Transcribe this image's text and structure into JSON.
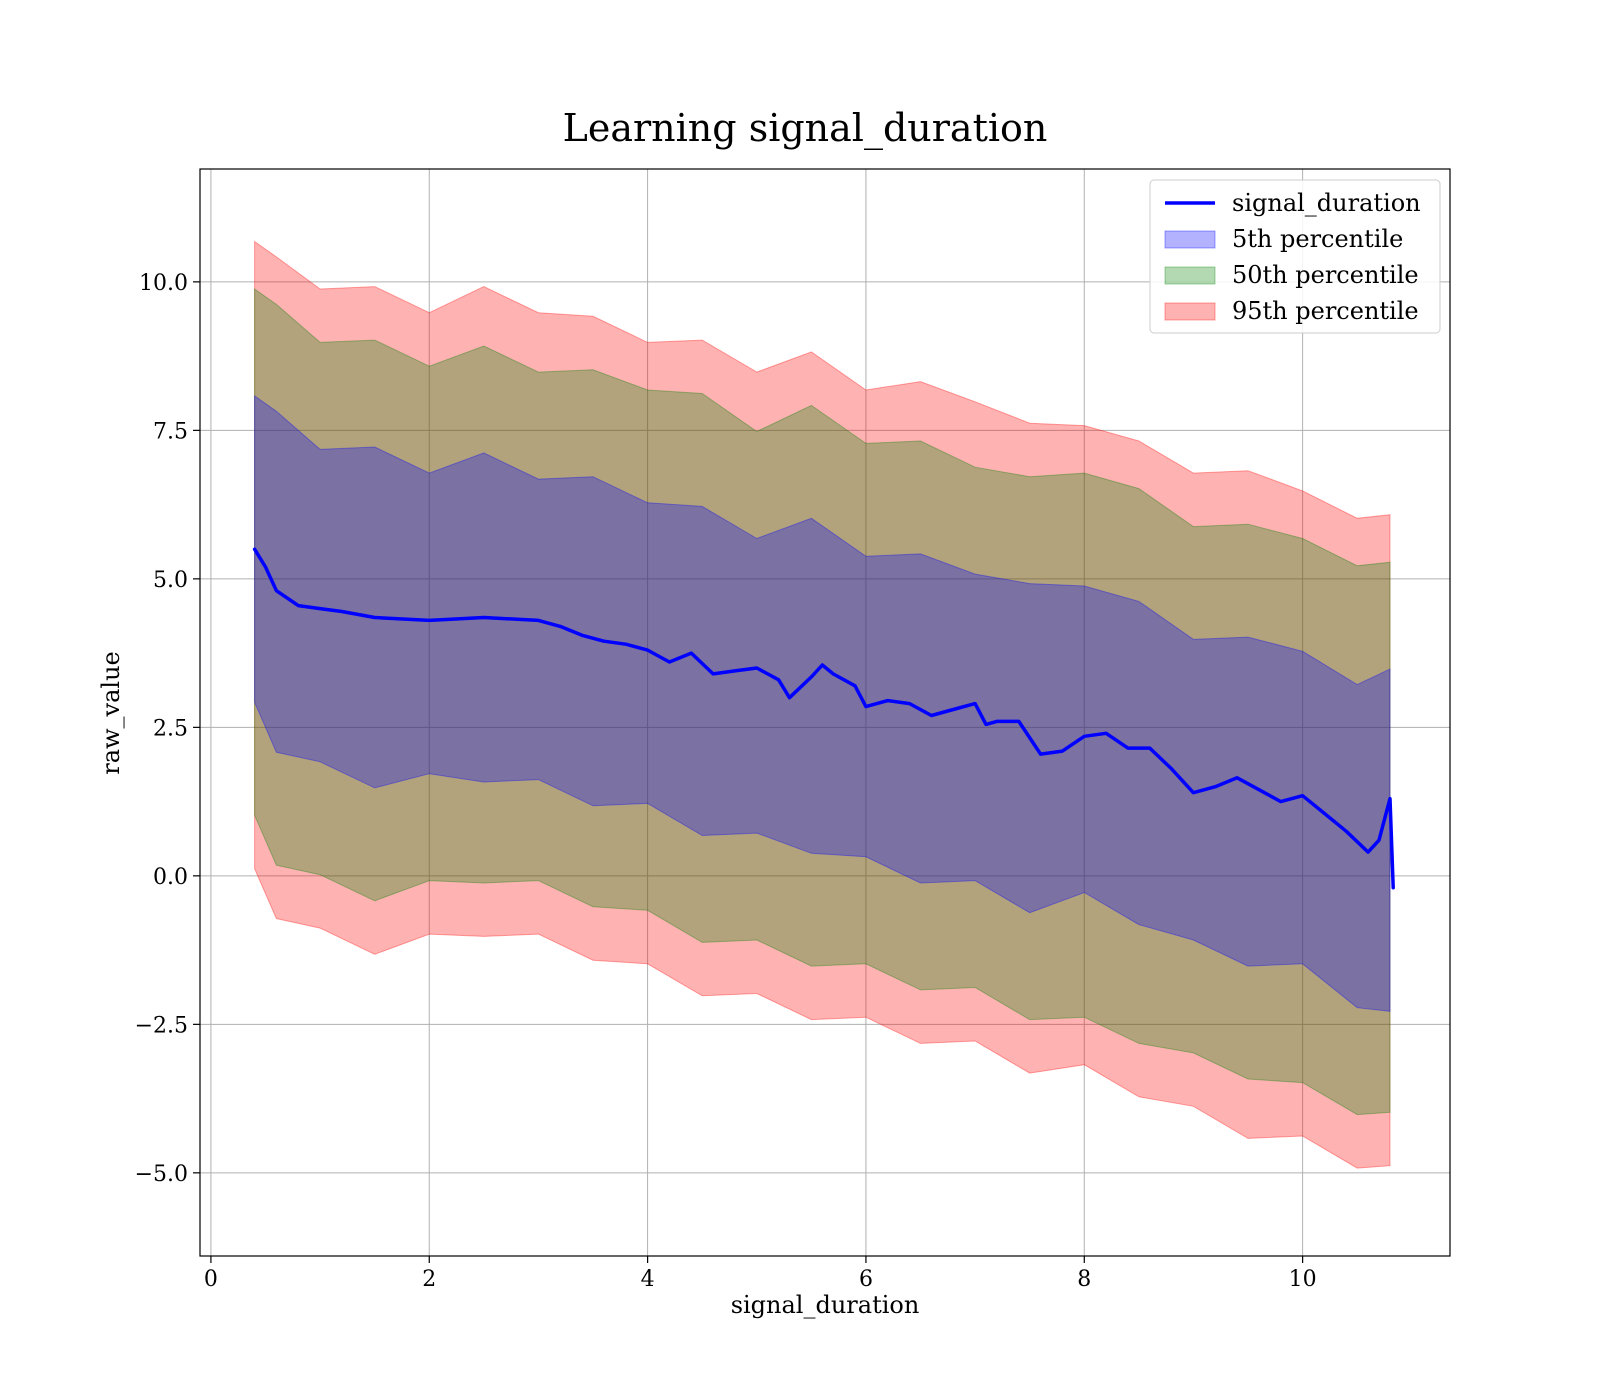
{
  "chart_data": {
    "type": "line",
    "title": "Learning signal_duration",
    "xlabel": "signal_duration",
    "ylabel": "raw_value",
    "xlim": [
      -0.1,
      11.35
    ],
    "ylim": [
      -6.4,
      11.9
    ],
    "xticks": [
      0,
      2,
      4,
      6,
      8,
      10
    ],
    "xtick_labels": [
      "0",
      "2",
      "4",
      "6",
      "8",
      "10"
    ],
    "yticks": [
      -5.0,
      -2.5,
      0.0,
      2.5,
      5.0,
      7.5,
      10.0
    ],
    "ytick_labels": [
      "−5.0",
      "−2.5",
      "0.0",
      "2.5",
      "5.0",
      "7.5",
      "10.0"
    ],
    "grid": true,
    "legend_position": "top-right",
    "colors": {
      "line": "#0000ff",
      "band_5th": "#0000ff",
      "band_50th": "#008000",
      "band_95th": "#ff0000"
    },
    "line": {
      "name": "signal_duration",
      "x": [
        0.4,
        0.5,
        0.6,
        0.8,
        1.0,
        1.2,
        1.5,
        2.0,
        2.5,
        3.0,
        3.2,
        3.4,
        3.6,
        3.8,
        4.0,
        4.2,
        4.4,
        4.6,
        4.8,
        5.0,
        5.2,
        5.3,
        5.5,
        5.6,
        5.7,
        5.9,
        6.0,
        6.2,
        6.4,
        6.6,
        6.8,
        7.0,
        7.1,
        7.2,
        7.4,
        7.6,
        7.8,
        8.0,
        8.2,
        8.4,
        8.6,
        8.8,
        9.0,
        9.2,
        9.4,
        9.6,
        9.8,
        10.0,
        10.2,
        10.4,
        10.6,
        10.7,
        10.8,
        10.83
      ],
      "y": [
        5.5,
        5.2,
        4.8,
        4.55,
        4.5,
        4.45,
        4.35,
        4.3,
        4.35,
        4.3,
        4.2,
        4.05,
        3.95,
        3.9,
        3.8,
        3.6,
        3.75,
        3.4,
        3.45,
        3.5,
        3.3,
        3.0,
        3.35,
        3.55,
        3.4,
        3.2,
        2.85,
        2.95,
        2.9,
        2.7,
        2.8,
        2.9,
        2.55,
        2.6,
        2.6,
        2.05,
        2.1,
        2.35,
        2.4,
        2.15,
        2.15,
        1.8,
        1.4,
        1.5,
        1.65,
        1.45,
        1.25,
        1.35,
        1.05,
        0.75,
        0.4,
        0.6,
        1.3,
        -0.2
      ]
    },
    "bands": [
      {
        "name": "95th percentile",
        "x": [
          0.4,
          0.6,
          1.0,
          1.5,
          2.0,
          2.5,
          3.0,
          3.5,
          4.0,
          4.5,
          5.0,
          5.5,
          6.0,
          6.5,
          7.0,
          7.5,
          8.0,
          8.5,
          9.0,
          9.5,
          10.0,
          10.5,
          10.8
        ],
        "upper": [
          10.8,
          10.3,
          10.0,
          9.8,
          9.6,
          9.8,
          9.6,
          9.3,
          9.1,
          8.9,
          8.6,
          8.7,
          8.3,
          8.2,
          8.1,
          7.5,
          7.7,
          7.2,
          6.9,
          6.7,
          6.6,
          5.9,
          6.2
        ],
        "lower": [
          0.0,
          -0.6,
          -1.0,
          -1.2,
          -1.1,
          -0.9,
          -1.1,
          -1.3,
          -1.6,
          -1.9,
          -2.1,
          -2.3,
          -2.5,
          -2.7,
          -2.9,
          -3.2,
          -3.3,
          -3.6,
          -4.0,
          -4.3,
          -4.5,
          -4.8,
          -5.0
        ]
      },
      {
        "name": "50th percentile",
        "x": [
          0.4,
          0.6,
          1.0,
          1.5,
          2.0,
          2.5,
          3.0,
          3.5,
          4.0,
          4.5,
          5.0,
          5.5,
          6.0,
          6.5,
          7.0,
          7.5,
          8.0,
          8.5,
          9.0,
          9.5,
          10.0,
          10.5,
          10.8
        ],
        "upper": [
          10.0,
          9.5,
          9.1,
          8.9,
          8.7,
          8.8,
          8.6,
          8.4,
          8.3,
          8.0,
          7.6,
          7.8,
          7.4,
          7.2,
          7.0,
          6.6,
          6.9,
          6.4,
          6.0,
          5.8,
          5.8,
          5.1,
          5.4
        ],
        "lower": [
          0.9,
          0.3,
          -0.1,
          -0.3,
          -0.2,
          0.0,
          -0.2,
          -0.4,
          -0.7,
          -1.0,
          -1.2,
          -1.4,
          -1.6,
          -1.8,
          -2.0,
          -2.3,
          -2.5,
          -2.7,
          -3.1,
          -3.3,
          -3.6,
          -3.9,
          -4.1
        ]
      },
      {
        "name": "5th percentile",
        "x": [
          0.4,
          0.6,
          1.0,
          1.5,
          2.0,
          2.5,
          3.0,
          3.5,
          4.0,
          4.5,
          5.0,
          5.5,
          6.0,
          6.5,
          7.0,
          7.5,
          8.0,
          8.5,
          9.0,
          9.5,
          10.0,
          10.5,
          10.8
        ],
        "upper": [
          8.2,
          7.7,
          7.3,
          7.1,
          6.9,
          7.0,
          6.8,
          6.6,
          6.4,
          6.1,
          5.8,
          5.9,
          5.5,
          5.3,
          5.2,
          4.8,
          5.0,
          4.5,
          4.1,
          3.9,
          3.9,
          3.1,
          3.6
        ],
        "lower": [
          2.8,
          2.2,
          1.8,
          1.6,
          1.6,
          1.7,
          1.5,
          1.3,
          1.1,
          0.8,
          0.6,
          0.5,
          0.2,
          0.0,
          -0.2,
          -0.5,
          -0.4,
          -0.7,
          -1.2,
          -1.4,
          -1.6,
          -2.1,
          -2.4
        ]
      }
    ],
    "legend": [
      "signal_duration",
      "5th percentile",
      "50th percentile",
      "95th percentile"
    ]
  }
}
